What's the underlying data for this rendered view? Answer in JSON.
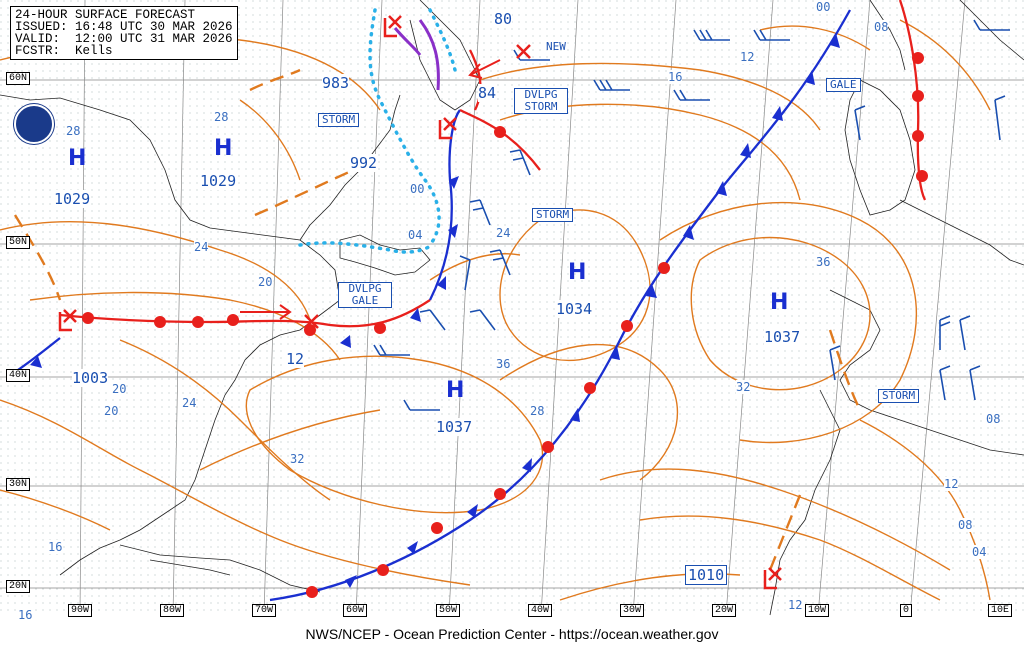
{
  "header": {
    "line1": "24-HOUR SURFACE FORECAST",
    "line2": "ISSUED: 16:48 UTC 30 MAR 2026",
    "line3": "VALID:  12:00 UTC 31 MAR 2026",
    "line4": "FCSTR:  Kells"
  },
  "footer": "NWS/NCEP - Ocean Prediction Center - https://ocean.weather.gov",
  "lat_labels": [
    "60N",
    "50N",
    "40N",
    "30N",
    "20N"
  ],
  "lon_labels": [
    "90W",
    "80W",
    "70W",
    "60W",
    "50W",
    "40W",
    "30W",
    "20W",
    "10W",
    "0",
    "10E"
  ],
  "highs": [
    {
      "letter": "H",
      "value": "1029",
      "iso": "28"
    },
    {
      "letter": "H",
      "value": "1029",
      "iso": "28"
    },
    {
      "letter": "H",
      "value": "1034"
    },
    {
      "letter": "H",
      "value": "1037"
    },
    {
      "letter": "H",
      "value": "1037"
    }
  ],
  "low_pressures": [
    "983",
    "992",
    "84",
    "80",
    "1003",
    "1010"
  ],
  "warnings": [
    "STORM",
    "STORM",
    "STORM",
    "GALE",
    "NEW",
    "DVLPG STORM",
    "DVLPG GALE"
  ],
  "isobar_labels": [
    "00",
    "08",
    "12",
    "16",
    "24",
    "20",
    "24",
    "12",
    "20",
    "24",
    "32",
    "36",
    "28",
    "36",
    "32",
    "04",
    "00",
    "08",
    "12",
    "08",
    "04",
    "12",
    "16",
    "16",
    "20"
  ],
  "colors": {
    "isobar": "#e07a1f",
    "front_warm": "#e8201c",
    "front_cold": "#1a2fd0",
    "ice": "#2ab0e8",
    "occluded": "#8a30c8",
    "barb": "#1a4fb0",
    "grid": "#555555"
  }
}
